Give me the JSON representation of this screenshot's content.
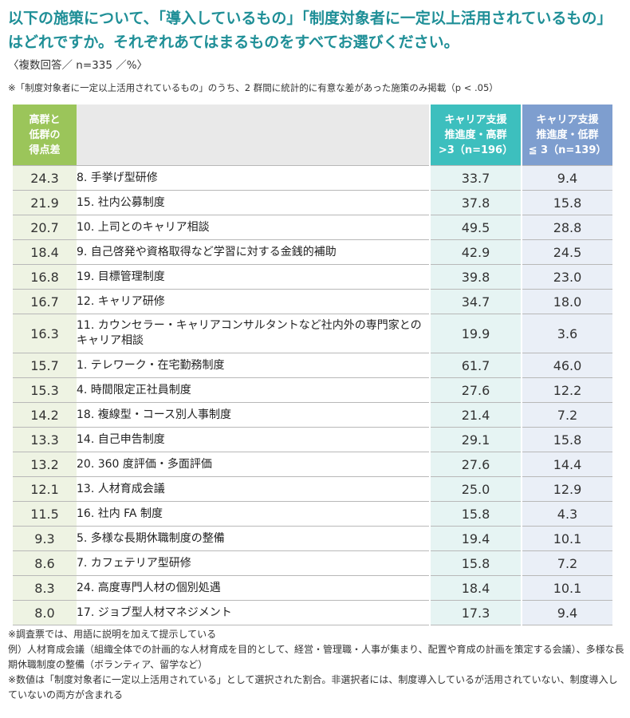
{
  "title": "以下の施策について、「導入しているもの」「制度対象者に一定以上活用されているもの」はどれですか。それぞれあてはまるものをすべてお選びください。",
  "subtitle": "〈複数回答／ n=335 ／%〉",
  "note_top": "※「制度対象者に一定以上活用されているもの」のうち、2 群間に統計的に有意な差があった施策のみ掲載（p < .05）",
  "headers": {
    "diff_lines": [
      "高群と",
      "低群の",
      "得点差"
    ],
    "high_lines": [
      "キャリア支援",
      "推進度・高群",
      ">3（n=196）"
    ],
    "low_lines": [
      "キャリア支援",
      "推進度・低群",
      "≦ 3（n=139）"
    ]
  },
  "rows": [
    {
      "diff": "24.3",
      "name": "8. 手挙げ型研修",
      "high": "33.7",
      "low": "9.4"
    },
    {
      "diff": "21.9",
      "name": "15. 社内公募制度",
      "high": "37.8",
      "low": "15.8"
    },
    {
      "diff": "20.7",
      "name": "10. 上司とのキャリア相談",
      "high": "49.5",
      "low": "28.8"
    },
    {
      "diff": "18.4",
      "name": "9. 自己啓発や資格取得など学習に対する金銭的補助",
      "high": "42.9",
      "low": "24.5"
    },
    {
      "diff": "16.8",
      "name": "19. 目標管理制度",
      "high": "39.8",
      "low": "23.0"
    },
    {
      "diff": "16.7",
      "name": "12. キャリア研修",
      "high": "34.7",
      "low": "18.0"
    },
    {
      "diff": "16.3",
      "name": "11. カウンセラー・キャリアコンサルタントなど社内外の専門家とのキャリア相談",
      "high": "19.9",
      "low": "3.6"
    },
    {
      "diff": "15.7",
      "name": "1. テレワーク・在宅勤務制度",
      "high": "61.7",
      "low": "46.0"
    },
    {
      "diff": "15.3",
      "name": "4. 時間限定正社員制度",
      "high": "27.6",
      "low": "12.2"
    },
    {
      "diff": "14.2",
      "name": "18. 複線型・コース別人事制度",
      "high": "21.4",
      "low": "7.2"
    },
    {
      "diff": "13.3",
      "name": "14. 自己申告制度",
      "high": "29.1",
      "low": "15.8"
    },
    {
      "diff": "13.2",
      "name": "20. 360 度評価・多面評価",
      "high": "27.6",
      "low": "14.4"
    },
    {
      "diff": "12.1",
      "name": "13. 人材育成会議",
      "high": "25.0",
      "low": "12.9"
    },
    {
      "diff": "11.5",
      "name": "16. 社内 FA 制度",
      "high": "15.8",
      "low": "4.3"
    },
    {
      "diff": "9.3",
      "name": "5. 多様な長期休職制度の整備",
      "high": "19.4",
      "low": "10.1"
    },
    {
      "diff": "8.6",
      "name": "7. カフェテリア型研修",
      "high": "15.8",
      "low": "7.2"
    },
    {
      "diff": "8.3",
      "name": "24. 高度専門人材の個別処遇",
      "high": "18.4",
      "low": "10.1"
    },
    {
      "diff": "8.0",
      "name": "17. ジョブ型人材マネジメント",
      "high": "17.3",
      "low": "9.4"
    }
  ],
  "footnotes": [
    "※調査票では、用語に説明を加えて提示している",
    "例）人材育成会議（組織全体での計画的な人材育成を目的として、経営・管理職・人事が集まり、配置や育成の計画を策定する会議）、多様な長期休職制度の整備（ボランティア、留学など）",
    "※数値は「制度対象者に一定以上活用されている」として選択された割合。非選択者には、制度導入しているが活用されていない、制度導入していないの両方が含まれる"
  ],
  "colors": {
    "title": "#1f8f97",
    "diff_header": "#9bc55a",
    "high_header": "#3dbfbe",
    "low_header": "#7e9ecf"
  }
}
